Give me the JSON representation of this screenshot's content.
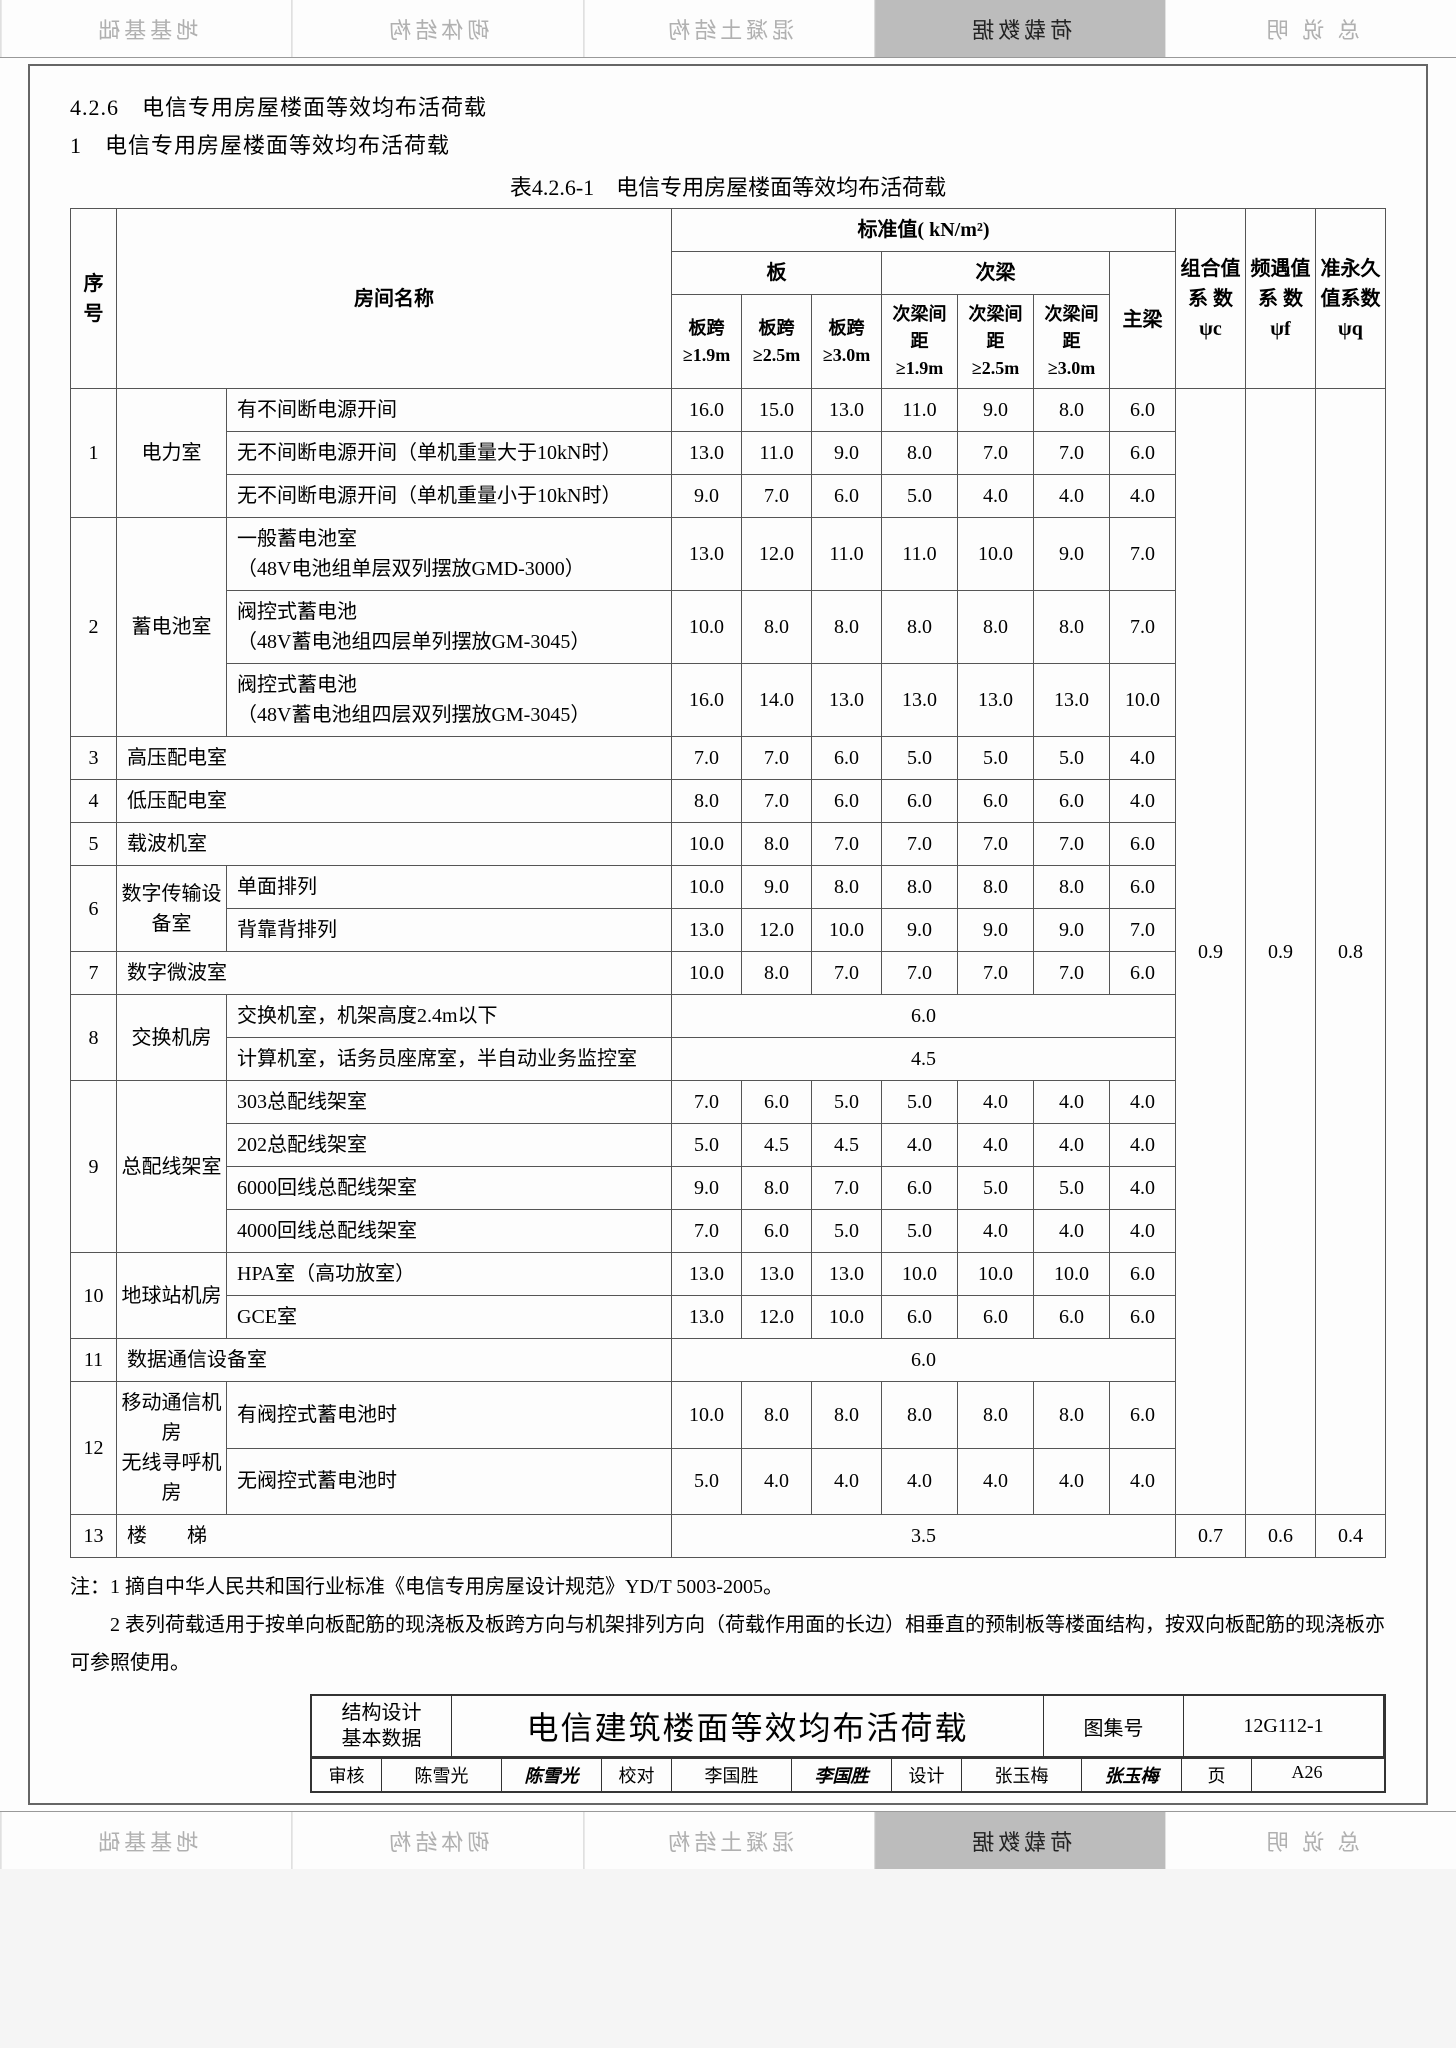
{
  "tabs": {
    "items": [
      "地基基础",
      "砌体结构",
      "混凝土结构",
      "荷载数据",
      "总 说 明"
    ],
    "active_index": 3
  },
  "section_no": "4.2.6",
  "section_title": "电信专用房屋楼面等效均布活荷载",
  "list_no": "1",
  "list_title": "电信专用房屋楼面等效均布活荷载",
  "table_no": "表4.2.6-1",
  "table_caption": "电信专用房屋楼面等效均布活荷载",
  "headers": {
    "seq": "序号",
    "room": "房间名称",
    "std_value": "标准值( kN/m²)",
    "slab": "板",
    "sub_beam": "次梁",
    "main_beam": "主梁",
    "slab_spans": [
      "板跨\n≥1.9m",
      "板跨\n≥2.5m",
      "板跨\n≥3.0m"
    ],
    "beam_spans": [
      "次梁间距\n≥1.9m",
      "次梁间距\n≥2.5m",
      "次梁间距\n≥3.0m"
    ],
    "comb": "组合值系 数\nψc",
    "freq": "频遇值系 数\nψf",
    "perm": "准永久值系数\nψq"
  },
  "common_psi": {
    "c": "0.9",
    "f": "0.9",
    "q": "0.8"
  },
  "row13_psi": {
    "c": "0.7",
    "f": "0.6",
    "q": "0.4"
  },
  "rows": [
    {
      "n": "1",
      "g": "电力室",
      "items": [
        {
          "name": "有不间断电源开间",
          "v": [
            "16.0",
            "15.0",
            "13.0",
            "11.0",
            "9.0",
            "8.0",
            "6.0"
          ]
        },
        {
          "name": "无不间断电源开间（单机重量大于10kN时）",
          "v": [
            "13.0",
            "11.0",
            "9.0",
            "8.0",
            "7.0",
            "7.0",
            "6.0"
          ]
        },
        {
          "name": "无不间断电源开间（单机重量小于10kN时）",
          "v": [
            "9.0",
            "7.0",
            "6.0",
            "5.0",
            "4.0",
            "4.0",
            "4.0"
          ]
        }
      ]
    },
    {
      "n": "2",
      "g": "蓄电池室",
      "items": [
        {
          "name": "一般蓄电池室\n（48V电池组单层双列摆放GMD-3000）",
          "v": [
            "13.0",
            "12.0",
            "11.0",
            "11.0",
            "10.0",
            "9.0",
            "7.0"
          ]
        },
        {
          "name": "阀控式蓄电池\n（48V蓄电池组四层单列摆放GM-3045）",
          "v": [
            "10.0",
            "8.0",
            "8.0",
            "8.0",
            "8.0",
            "8.0",
            "7.0"
          ]
        },
        {
          "name": "阀控式蓄电池\n（48V蓄电池组四层双列摆放GM-3045）",
          "v": [
            "16.0",
            "14.0",
            "13.0",
            "13.0",
            "13.0",
            "13.0",
            "10.0"
          ]
        }
      ]
    },
    {
      "n": "3",
      "g": "",
      "items": [
        {
          "name": "高压配电室",
          "v": [
            "7.0",
            "7.0",
            "6.0",
            "5.0",
            "5.0",
            "5.0",
            "4.0"
          ]
        }
      ]
    },
    {
      "n": "4",
      "g": "",
      "items": [
        {
          "name": "低压配电室",
          "v": [
            "8.0",
            "7.0",
            "6.0",
            "6.0",
            "6.0",
            "6.0",
            "4.0"
          ]
        }
      ]
    },
    {
      "n": "5",
      "g": "",
      "items": [
        {
          "name": "载波机室",
          "v": [
            "10.0",
            "8.0",
            "7.0",
            "7.0",
            "7.0",
            "7.0",
            "6.0"
          ]
        }
      ]
    },
    {
      "n": "6",
      "g": "数字传输设备室",
      "items": [
        {
          "name": "单面排列",
          "v": [
            "10.0",
            "9.0",
            "8.0",
            "8.0",
            "8.0",
            "8.0",
            "6.0"
          ]
        },
        {
          "name": "背靠背排列",
          "v": [
            "13.0",
            "12.0",
            "10.0",
            "9.0",
            "9.0",
            "9.0",
            "7.0"
          ]
        }
      ]
    },
    {
      "n": "7",
      "g": "",
      "items": [
        {
          "name": "数字微波室",
          "v": [
            "10.0",
            "8.0",
            "7.0",
            "7.0",
            "7.0",
            "7.0",
            "6.0"
          ]
        }
      ]
    },
    {
      "n": "8",
      "g": "交换机房",
      "items": [
        {
          "name": "交换机室，机架高度2.4m以下",
          "span7": "6.0"
        },
        {
          "name": "计算机室，话务员座席室，半自动业务监控室",
          "span7": "4.5"
        }
      ]
    },
    {
      "n": "9",
      "g": "总配线架室",
      "items": [
        {
          "name": "303总配线架室",
          "v": [
            "7.0",
            "6.0",
            "5.0",
            "5.0",
            "4.0",
            "4.0",
            "4.0"
          ]
        },
        {
          "name": "202总配线架室",
          "v": [
            "5.0",
            "4.5",
            "4.5",
            "4.0",
            "4.0",
            "4.0",
            "4.0"
          ]
        },
        {
          "name": "6000回线总配线架室",
          "v": [
            "9.0",
            "8.0",
            "7.0",
            "6.0",
            "5.0",
            "5.0",
            "4.0"
          ]
        },
        {
          "name": "4000回线总配线架室",
          "v": [
            "7.0",
            "6.0",
            "5.0",
            "5.0",
            "4.0",
            "4.0",
            "4.0"
          ]
        }
      ]
    },
    {
      "n": "10",
      "g": "地球站机房",
      "items": [
        {
          "name": "HPA室（高功放室）",
          "v": [
            "13.0",
            "13.0",
            "13.0",
            "10.0",
            "10.0",
            "10.0",
            "6.0"
          ]
        },
        {
          "name": "GCE室",
          "v": [
            "13.0",
            "12.0",
            "10.0",
            "6.0",
            "6.0",
            "6.0",
            "6.0"
          ]
        }
      ]
    },
    {
      "n": "11",
      "g": "",
      "items": [
        {
          "name": "数据通信设备室",
          "span7": "6.0"
        }
      ]
    },
    {
      "n": "12",
      "g": "移动通信机房\n无线寻呼机房",
      "items": [
        {
          "name": "有阀控式蓄电池时",
          "v": [
            "10.0",
            "8.0",
            "8.0",
            "8.0",
            "8.0",
            "8.0",
            "6.0"
          ]
        },
        {
          "name": "无阀控式蓄电池时",
          "v": [
            "5.0",
            "4.0",
            "4.0",
            "4.0",
            "4.0",
            "4.0",
            "4.0"
          ]
        }
      ]
    },
    {
      "n": "13",
      "g": "",
      "items": [
        {
          "name": "楼　　梯",
          "span7": "3.5"
        }
      ]
    }
  ],
  "notes": {
    "label": "注：",
    "n1": "1  摘自中华人民共和国行业标准《电信专用房屋设计规范》YD/T 5003-2005。",
    "n2": "2  表列荷载适用于按单向板配筋的现浇板及板跨方向与机架排列方向（荷载作用面的长边）相垂直的预制板等楼面结构，按双向板配筋的现浇板亦可参照使用。"
  },
  "footer": {
    "left1": "结构设计",
    "left2": "基本数据",
    "title": "电信建筑楼面等效均布活荷载",
    "set_label": "图集号",
    "set_no": "12G112-1",
    "audit_l": "审核",
    "audit_n": "陈雪光",
    "proof_l": "校对",
    "proof_n": "李国胜",
    "design_l": "设计",
    "design_n": "张玉梅",
    "page_l": "页",
    "page_n": "A26"
  }
}
